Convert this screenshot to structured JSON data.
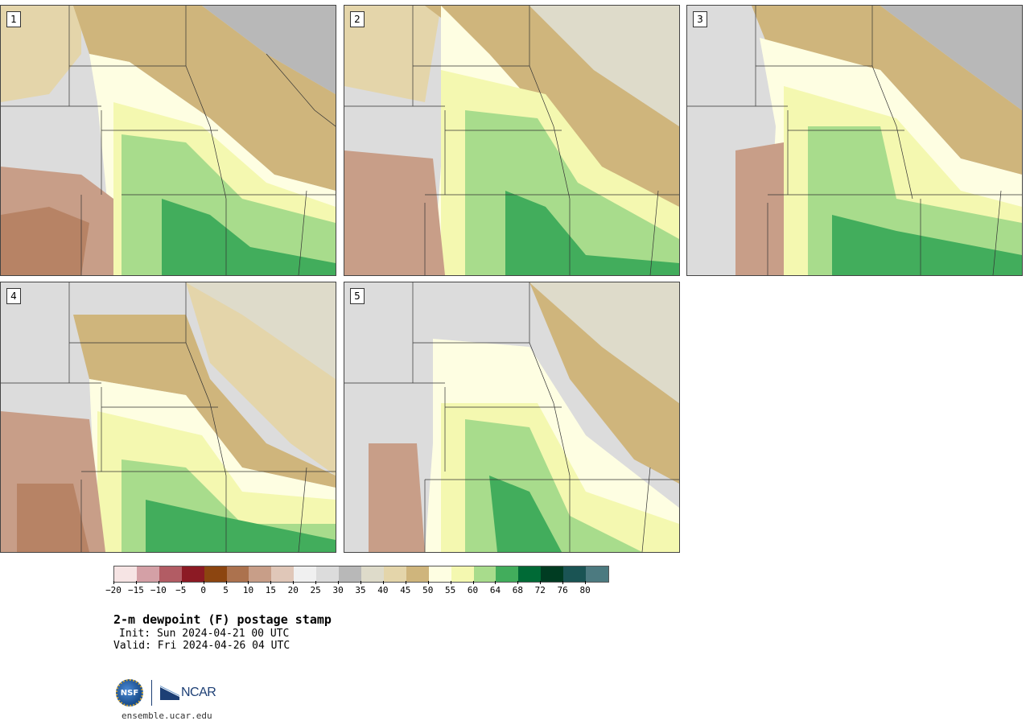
{
  "panels": [
    {
      "label": "1"
    },
    {
      "label": "2"
    },
    {
      "label": "3"
    },
    {
      "label": "4"
    },
    {
      "label": "5"
    }
  ],
  "colorbar": {
    "colors": [
      "#f6e4e4",
      "#d4a0a6",
      "#b25c64",
      "#8c1a24",
      "#8c4510",
      "#ac724e",
      "#c89e88",
      "#e0c7b8",
      "#f0f0f0",
      "#dcdcdc",
      "#b8b8b8",
      "#dedbca",
      "#e4d5aa",
      "#cfb57c",
      "#fefee2",
      "#f4f8b0",
      "#a8dc8c",
      "#42ad5c",
      "#006a36",
      "#003c22",
      "#1a5454",
      "#4c7a80"
    ],
    "tick_labels": [
      "−20",
      "−15",
      "−10",
      "−5",
      "0",
      "5",
      "10",
      "15",
      "20",
      "25",
      "30",
      "35",
      "40",
      "45",
      "50",
      "55",
      "60",
      "64",
      "68",
      "72",
      "76",
      "80"
    ]
  },
  "title": "2-m dewpoint (F) postage stamp",
  "init": "Init: Sun 2024-04-21 00 UTC",
  "valid": "Valid: Fri 2024-04-26 04 UTC",
  "logos": {
    "nsf": "NSF",
    "ncar": "NCAR"
  },
  "url": "ensemble.ucar.edu"
}
